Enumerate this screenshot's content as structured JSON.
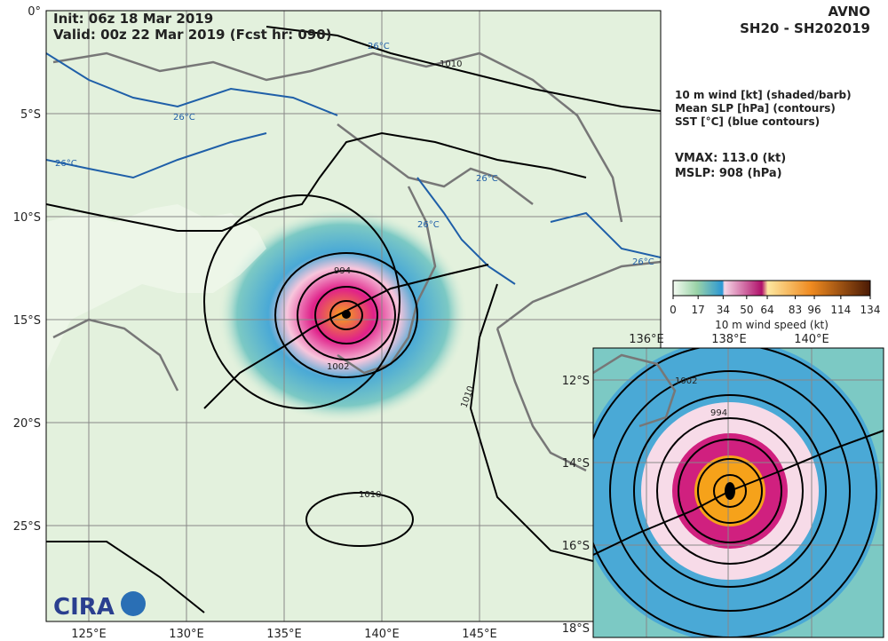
{
  "header": {
    "init": "Init:  06z 18 Mar 2019",
    "valid": "Valid: 00z 22 Mar 2019 (Fcst hr: 090)",
    "model": "AVNO",
    "storm": "SH20 - SH202019"
  },
  "legend": [
    "10 m wind [kt] (shaded/barb)",
    "Mean SLP [hPa] (contours)",
    "SST [°C] (blue contours)"
  ],
  "stats": {
    "vmax": "VMAX: 113.0 (kt)",
    "mslp": "MSLP:  908 (hPa)"
  },
  "colorbar": {
    "label": "10 m wind speed (kt)",
    "lim": [
      0,
      134
    ],
    "ticks": [
      0,
      17,
      34,
      50,
      64,
      83,
      96,
      114,
      134
    ]
  },
  "map": {
    "lat_labels": [
      "0°",
      "5°S",
      "10°S",
      "15°S",
      "20°S",
      "25°S"
    ],
    "lon_labels": [
      "125°E",
      "130°E",
      "135°E",
      "140°E",
      "145°E"
    ],
    "contour_labels": [
      "1010",
      "1002",
      "994",
      "1010",
      "1010"
    ],
    "sst_label": "26°C"
  },
  "inset": {
    "lon_labels": [
      "136°E",
      "138°E",
      "140°E"
    ],
    "lat_labels": [
      "12°S",
      "14°S",
      "16°S",
      "18°S"
    ],
    "contour_labels": [
      "1002",
      "994"
    ]
  },
  "logo": "CIRA"
}
